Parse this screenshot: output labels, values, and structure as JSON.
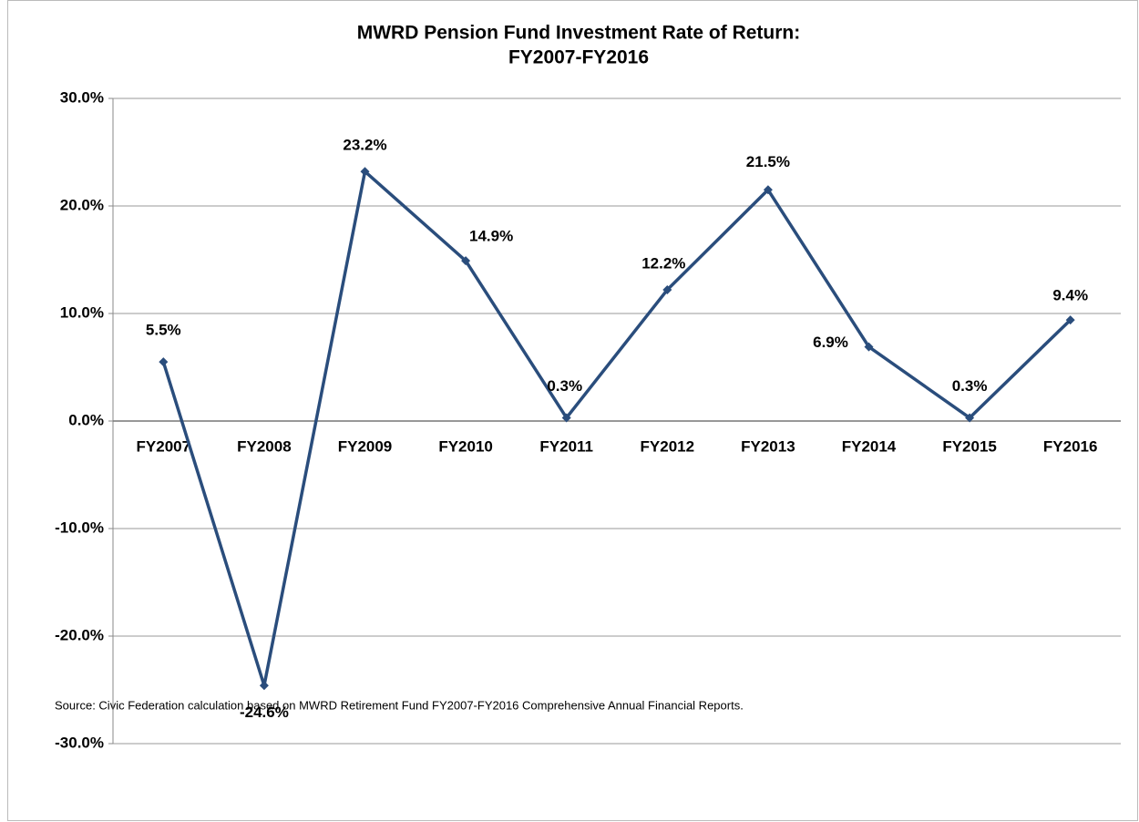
{
  "chart_data": {
    "type": "line",
    "title": [
      "MWRD Pension Fund Investment Rate of Return:",
      "FY2007-FY2016"
    ],
    "categories": [
      "FY2007",
      "FY2008",
      "FY2009",
      "FY2010",
      "FY2011",
      "FY2012",
      "FY2013",
      "FY2014",
      "FY2015",
      "FY2016"
    ],
    "series": [
      {
        "name": "Rate of Return",
        "color": "#2a4d7c",
        "values": [
          5.5,
          -24.6,
          23.2,
          14.9,
          0.3,
          12.2,
          21.5,
          6.9,
          0.3,
          9.4
        ],
        "value_labels": [
          "5.5%",
          "-24.6%",
          "23.2%",
          "14.9%",
          "0.3%",
          "12.2%",
          "21.5%",
          "6.9%",
          "0.3%",
          "9.4%"
        ]
      }
    ],
    "ylim": [
      -30,
      30
    ],
    "yticks": [
      {
        "value": -30,
        "label": "-30.0%"
      },
      {
        "value": -20,
        "label": "-20.0%"
      },
      {
        "value": -10,
        "label": "-10.0%"
      },
      {
        "value": 0,
        "label": "0.0%"
      },
      {
        "value": 10,
        "label": "10.0%"
      },
      {
        "value": 20,
        "label": "20.0%"
      },
      {
        "value": 30,
        "label": "30.0%"
      }
    ],
    "grid": true,
    "note": "Source: Civic Federation calculation based on MWRD Retirement Fund FY2007-FY2016 Comprehensive Annual Financial Reports."
  }
}
